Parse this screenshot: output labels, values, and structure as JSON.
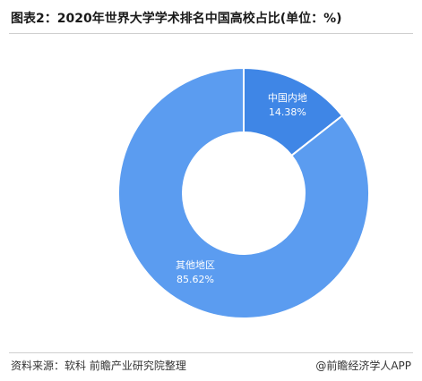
{
  "title": "图表2：2020年世界大学学术排名中国高校占比(单位：%)",
  "source": "资料来源：软科 前瞻产业研究院整理",
  "credit": "@前瞻经济学人APP",
  "colors": {
    "main_slice": "#5b9cf0",
    "minor_slice": "#3f86e6",
    "divider": "#cfcfcf"
  },
  "chart_data": {
    "type": "pie",
    "donut": true,
    "slices": [
      {
        "name": "中国内地",
        "value": 14.38,
        "label": "14.38%"
      },
      {
        "name": "其他地区",
        "value": 85.62,
        "label": "85.62%"
      }
    ]
  }
}
